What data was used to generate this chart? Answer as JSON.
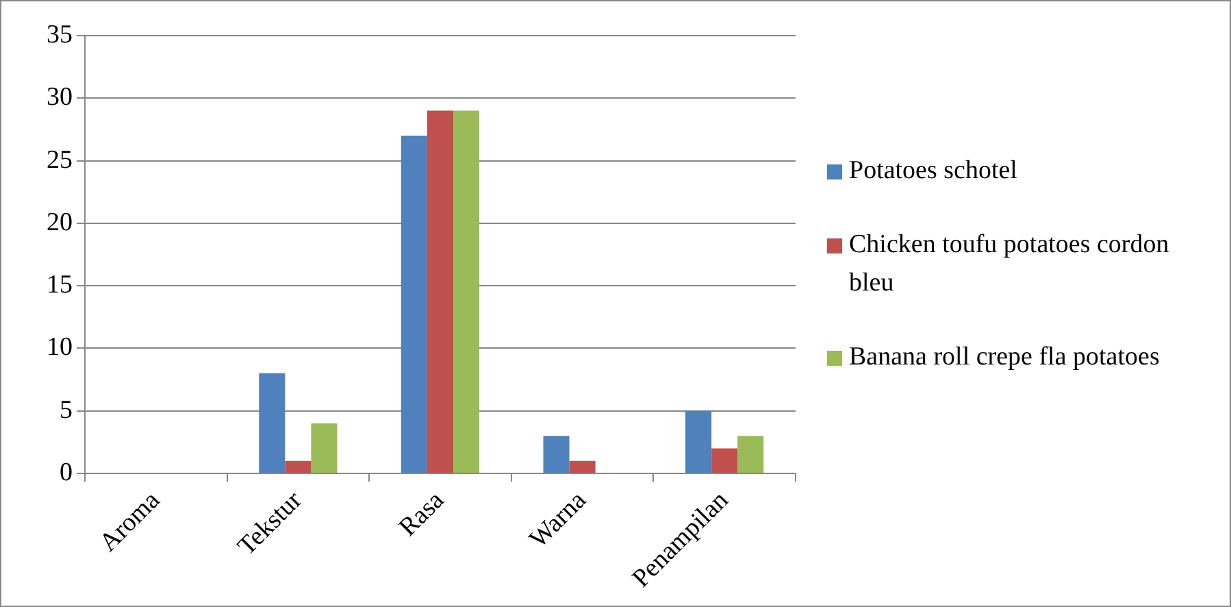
{
  "chart_data": {
    "type": "bar",
    "categories": [
      "Aroma",
      "Tekstur",
      "Rasa",
      "Warna",
      "Penampilan"
    ],
    "series": [
      {
        "name": "Potatoes schotel",
        "color": "#4f81bd",
        "values": [
          0,
          8,
          27,
          3,
          5
        ]
      },
      {
        "name": "Chicken toufu potatoes cordon bleu",
        "color": "#c0504d",
        "values": [
          0,
          1,
          29,
          1,
          2
        ]
      },
      {
        "name": "Banana roll crepe fla potatoes",
        "color": "#9bbb59",
        "values": [
          0,
          4,
          29,
          0,
          3
        ]
      }
    ],
    "ylim": [
      0,
      35
    ],
    "yticks": [
      0,
      5,
      10,
      15,
      20,
      25,
      30,
      35
    ],
    "grid": "y",
    "legend": "right"
  }
}
